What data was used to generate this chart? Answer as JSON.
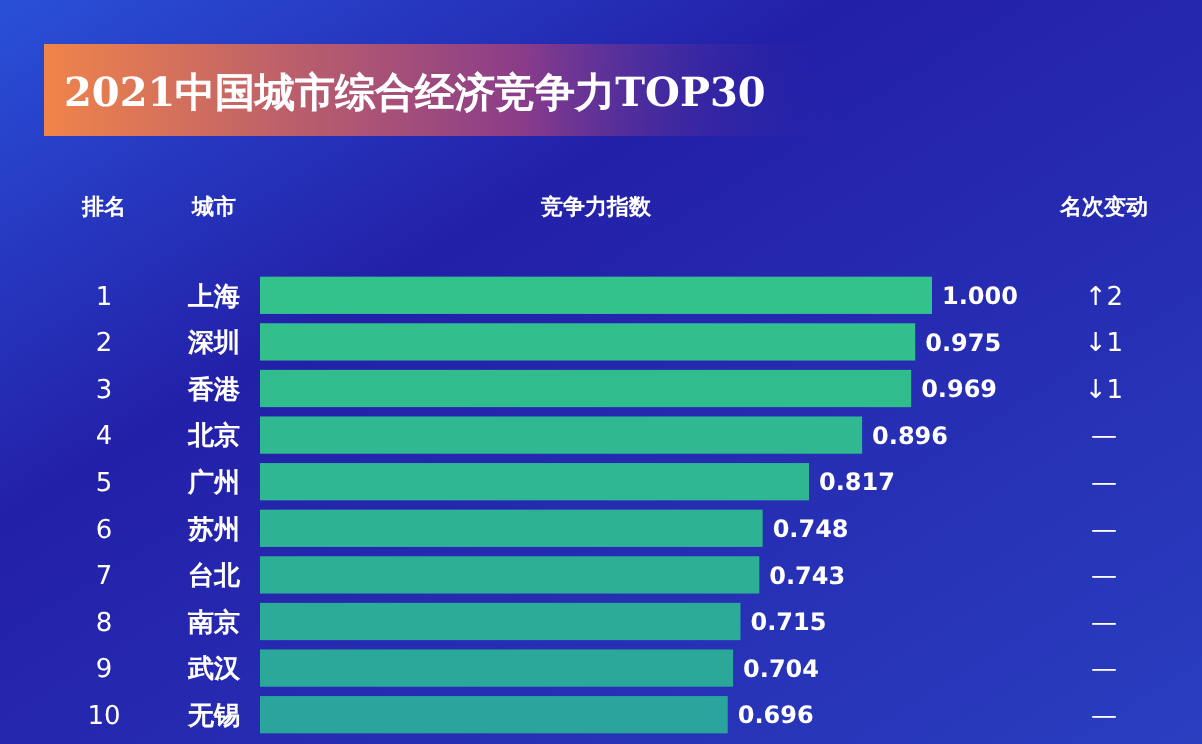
{
  "chart_data": {
    "type": "bar",
    "orientation": "horizontal",
    "title": "2021中国城市综合经济竞争力TOP30",
    "xlabel": "竞争力指数",
    "ylabel": "城市",
    "categories": [
      "上海",
      "深圳",
      "香港",
      "北京",
      "广州",
      "苏州",
      "台北",
      "南京",
      "武汉",
      "无锡"
    ],
    "values": [
      1.0,
      0.975,
      0.969,
      0.896,
      0.817,
      0.748,
      0.743,
      0.715,
      0.704,
      0.696
    ],
    "value_labels": [
      "1.000",
      "0.975",
      "0.969",
      "0.896",
      "0.817",
      "0.748",
      "0.743",
      "0.715",
      "0.704",
      "0.696"
    ],
    "colors": [
      "#33c28c",
      "#32bf8d",
      "#31bc8e",
      "#30b990",
      "#2fb692",
      "#2eb294",
      "#2daf96",
      "#2cab98",
      "#2ba89a",
      "#2aa49c"
    ],
    "xlim": [
      0,
      1.0
    ],
    "tick_labels": "y",
    "grid": false,
    "annotations": [
      "排名",
      "名次变动",
      "1",
      "2",
      "3",
      "4",
      "5",
      "6",
      "7",
      "8",
      "9",
      "10",
      "↑2",
      "↓1",
      "↓1",
      "—",
      "—",
      "—",
      "—",
      "—",
      "—",
      "—"
    ]
  }
}
